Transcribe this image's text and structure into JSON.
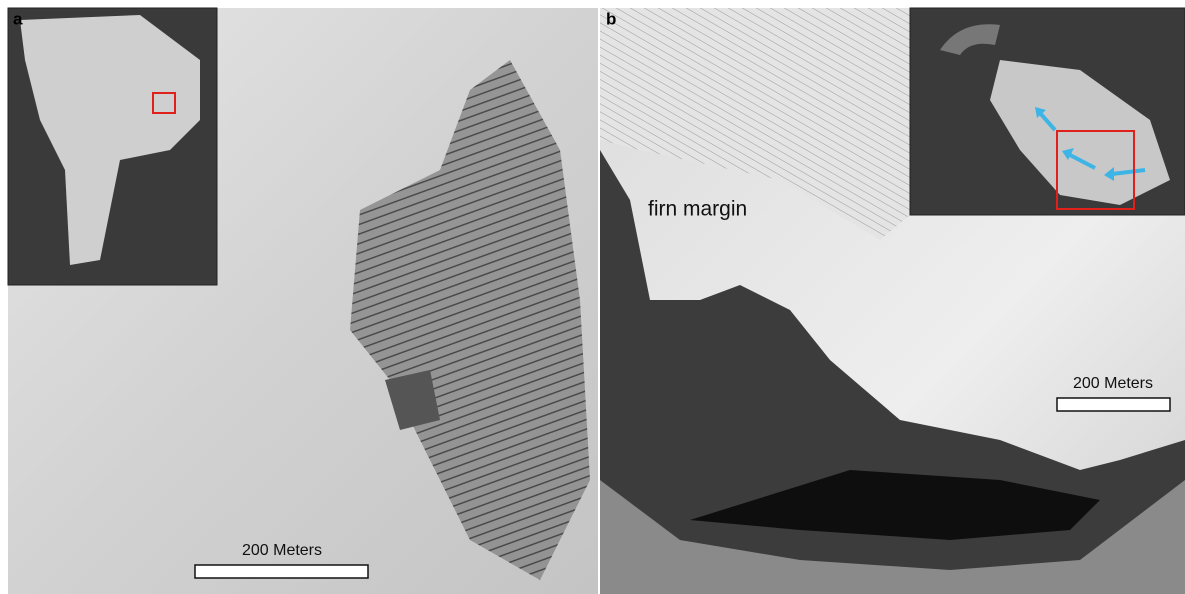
{
  "panels": [
    {
      "label": "a",
      "scale_bar": {
        "label": "200 Meters"
      }
    },
    {
      "label": "b",
      "annotation": "firn margin",
      "scale_bar": {
        "label": "200 Meters"
      }
    }
  ]
}
